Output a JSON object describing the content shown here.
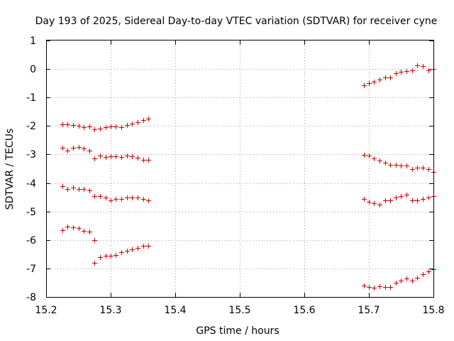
{
  "chart_data": {
    "type": "scatter",
    "title": "Day 193 of 2025, Sidereal Day-to-day VTEC variation (SDTVAR) for receiver cyne",
    "xlabel": "GPS time / hours",
    "ylabel": "SDTVAR / TECUs",
    "xlim": [
      15.2,
      15.8
    ],
    "ylim": [
      -8,
      1
    ],
    "xticks": [
      15.2,
      15.3,
      15.4,
      15.5,
      15.6,
      15.7,
      15.8
    ],
    "xtick_labels": [
      "15.2",
      "15.3",
      "15.4",
      "15.5",
      "15.6",
      "15.7",
      "15.8"
    ],
    "yticks": [
      1,
      0,
      -1,
      -2,
      -3,
      -4,
      -5,
      -6,
      -7,
      -8
    ],
    "ytick_labels": [
      "1",
      "0",
      "-1",
      "-2",
      "-3",
      "-4",
      "-5",
      "-6",
      "-7",
      "-8"
    ],
    "grid": true,
    "marker": "plus",
    "marker_color": "#cc0000",
    "series": [
      {
        "x": [
          15.225,
          15.233,
          15.242,
          15.25,
          15.258,
          15.267,
          15.275,
          15.283,
          15.292,
          15.3,
          15.308,
          15.317,
          15.325,
          15.333,
          15.342,
          15.35,
          15.358
        ],
        "y": [
          -1.95,
          -1.95,
          -1.97,
          -2.0,
          -2.05,
          -2.02,
          -2.12,
          -2.1,
          -2.05,
          -2.02,
          -2.02,
          -2.05,
          -1.97,
          -1.92,
          -1.87,
          -1.78,
          -1.75
        ]
      },
      {
        "x": [
          15.225,
          15.233,
          15.242,
          15.25,
          15.258,
          15.267,
          15.275,
          15.283,
          15.292,
          15.3,
          15.308,
          15.317,
          15.325,
          15.333,
          15.342,
          15.35,
          15.358
        ],
        "y": [
          -2.77,
          -2.87,
          -2.77,
          -2.75,
          -2.8,
          -2.87,
          -3.15,
          -3.05,
          -3.1,
          -3.07,
          -3.07,
          -3.1,
          -3.05,
          -3.07,
          -3.12,
          -3.18,
          -3.18
        ]
      },
      {
        "x": [
          15.225,
          15.233,
          15.242,
          15.25,
          15.258,
          15.267,
          15.275,
          15.283,
          15.292,
          15.3,
          15.308,
          15.317,
          15.325,
          15.333,
          15.342,
          15.35,
          15.358
        ],
        "y": [
          -4.12,
          -4.2,
          -4.17,
          -4.2,
          -4.2,
          -4.27,
          -4.47,
          -4.45,
          -4.52,
          -4.6,
          -4.55,
          -4.57,
          -4.52,
          -4.5,
          -4.52,
          -4.55,
          -4.62
        ]
      },
      {
        "x": [
          15.225,
          15.233,
          15.242,
          15.25,
          15.258,
          15.267,
          15.275
        ],
        "y": [
          -5.65,
          -5.52,
          -5.55,
          -5.57,
          -5.67,
          -5.7,
          -6.0
        ]
      },
      {
        "x": [
          15.275,
          15.283,
          15.292,
          15.3,
          15.308,
          15.317,
          15.325,
          15.333,
          15.342,
          15.35,
          15.358
        ],
        "y": [
          -6.8,
          -6.6,
          -6.55,
          -6.55,
          -6.52,
          -6.42,
          -6.37,
          -6.32,
          -6.27,
          -6.2,
          -6.2
        ]
      },
      {
        "x": [
          15.692,
          15.7,
          15.708,
          15.717,
          15.725,
          15.733,
          15.742,
          15.75,
          15.758,
          15.767,
          15.775,
          15.783,
          15.792,
          15.8
        ],
        "y": [
          -0.57,
          -0.5,
          -0.45,
          -0.37,
          -0.3,
          -0.3,
          -0.15,
          -0.1,
          -0.07,
          -0.05,
          0.12,
          0.1,
          -0.05,
          0.0
        ]
      },
      {
        "x": [
          15.692,
          15.7,
          15.708,
          15.717,
          15.725,
          15.733,
          15.742,
          15.75,
          15.758,
          15.767,
          15.775,
          15.783,
          15.792,
          15.8
        ],
        "y": [
          -3.02,
          -3.05,
          -3.15,
          -3.22,
          -3.3,
          -3.37,
          -3.37,
          -3.4,
          -3.4,
          -3.5,
          -3.47,
          -3.47,
          -3.52,
          -3.62
        ]
      },
      {
        "x": [
          15.692,
          15.7,
          15.708,
          15.717,
          15.725,
          15.733,
          15.742,
          15.75,
          15.758,
          15.767,
          15.775,
          15.783,
          15.792,
          15.8
        ],
        "y": [
          -4.55,
          -4.67,
          -4.7,
          -4.75,
          -4.62,
          -4.62,
          -4.52,
          -4.45,
          -4.42,
          -4.62,
          -4.62,
          -4.57,
          -4.5,
          -4.47
        ]
      },
      {
        "x": [
          15.692,
          15.7,
          15.708,
          15.717,
          15.725,
          15.733,
          15.742,
          15.75,
          15.758,
          15.767,
          15.775,
          15.783,
          15.792,
          15.8
        ],
        "y": [
          -7.6,
          -7.65,
          -7.67,
          -7.62,
          -7.65,
          -7.65,
          -7.5,
          -7.42,
          -7.35,
          -7.42,
          -7.32,
          -7.2,
          -7.1,
          -7.02
        ]
      }
    ]
  }
}
